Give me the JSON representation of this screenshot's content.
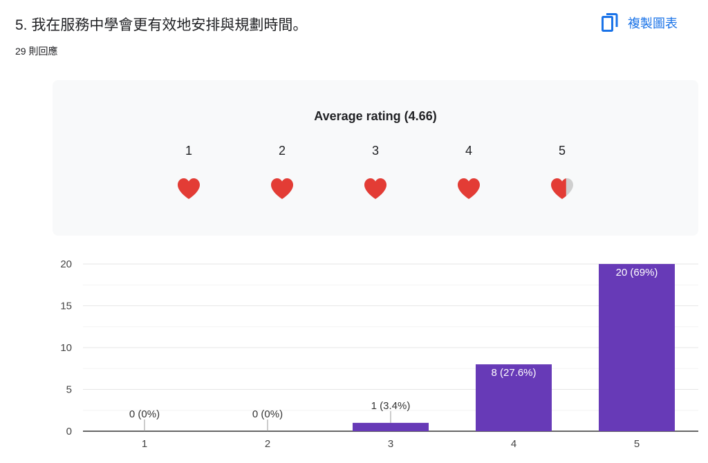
{
  "question": {
    "title": "5. 我在服務中學會更有效地安排與規劃時間。",
    "responses": "29 則回應",
    "copy_label": "複製圖表"
  },
  "rating": {
    "title": "Average rating (4.66)",
    "average": 4.66,
    "levels": [
      "1",
      "2",
      "3",
      "4",
      "5"
    ],
    "heart_fill": [
      1,
      1,
      1,
      1,
      0.66
    ],
    "heart_color": "#e33c35",
    "heart_empty_color": "#cfcfcf"
  },
  "chart_data": {
    "type": "bar",
    "categories": [
      "1",
      "2",
      "3",
      "4",
      "5"
    ],
    "values": [
      0,
      0,
      1,
      8,
      20
    ],
    "labels": [
      "0 (0%)",
      "0 (0%)",
      "1 (3.4%)",
      "8 (27.6%)",
      "20 (69%)"
    ],
    "ylim": [
      0,
      20
    ],
    "yticks": [
      0,
      5,
      10,
      15,
      20
    ],
    "bar_color": "#673ab7",
    "grid": true
  }
}
